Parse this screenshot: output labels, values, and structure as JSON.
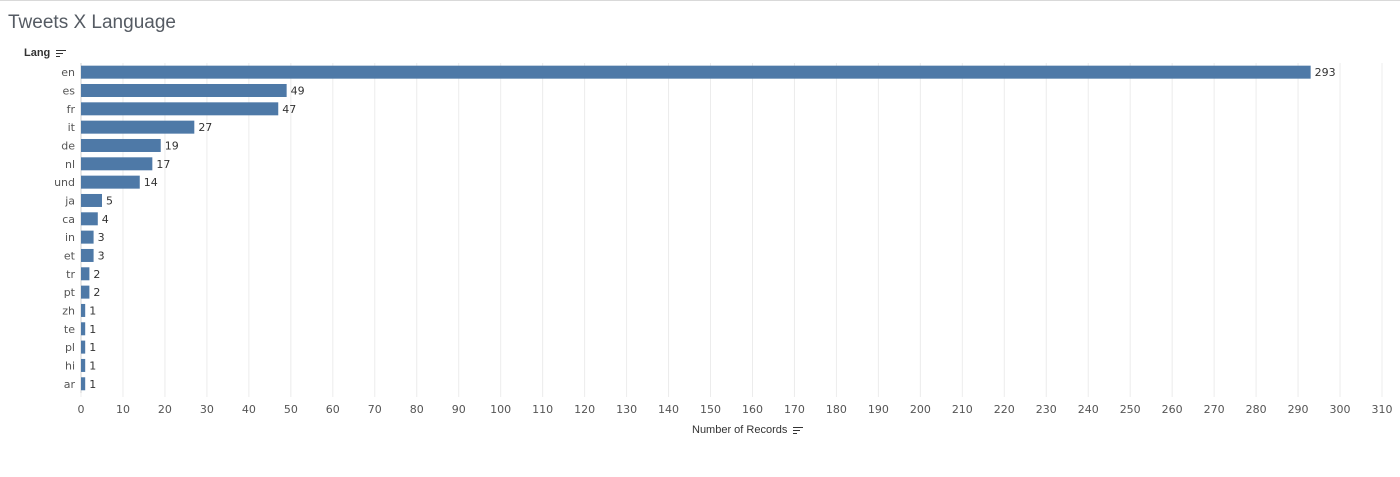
{
  "title": "Tweets X Language",
  "row_header": "Lang",
  "x_axis_title": "Number of Records",
  "sort_icon": "sort-descending-icon",
  "colors": {
    "bar": "#4e79a7",
    "grid": "#ececec",
    "text": "#555555",
    "label": "#333333"
  },
  "chart_data": {
    "type": "bar",
    "orientation": "horizontal",
    "title": "Tweets X Language",
    "ylabel": "Lang",
    "xlabel": "Number of Records",
    "categories": [
      "en",
      "es",
      "fr",
      "it",
      "de",
      "nl",
      "und",
      "ja",
      "ca",
      "in",
      "et",
      "tr",
      "pt",
      "zh",
      "te",
      "pl",
      "hi",
      "ar"
    ],
    "values": [
      293,
      49,
      47,
      27,
      19,
      17,
      14,
      5,
      4,
      3,
      3,
      2,
      2,
      1,
      1,
      1,
      1,
      1
    ],
    "xlim": [
      0,
      310
    ],
    "xticks": [
      0,
      10,
      20,
      30,
      40,
      50,
      60,
      70,
      80,
      90,
      100,
      110,
      120,
      130,
      140,
      150,
      160,
      170,
      180,
      190,
      200,
      210,
      220,
      230,
      240,
      250,
      260,
      270,
      280,
      290,
      300,
      310
    ],
    "grid": "vertical",
    "data_labels": true
  }
}
